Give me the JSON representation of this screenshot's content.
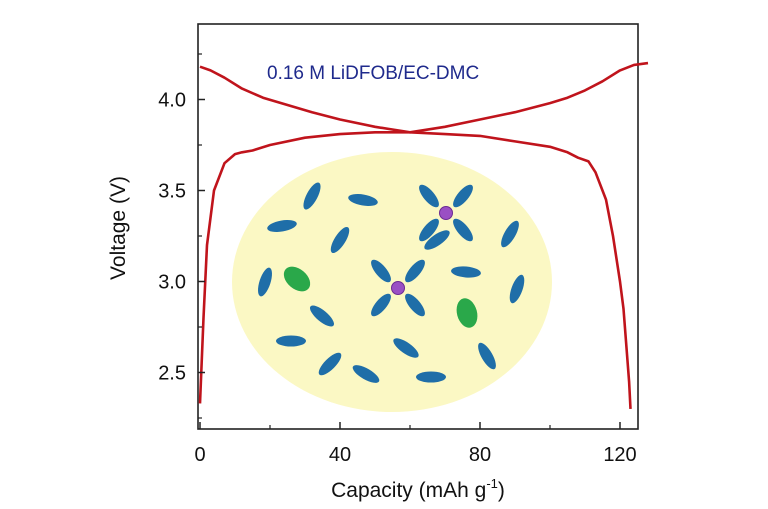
{
  "chart_data": {
    "type": "line",
    "title": "",
    "xlabel": "Capacity (mAh g",
    "xlabel_superscript": "-1",
    "xlabel_suffix": ")",
    "ylabel": "Voltage (V)",
    "xlim": [
      0,
      130
    ],
    "ylim": [
      2.2,
      4.4
    ],
    "x_ticks": [
      0,
      40,
      80,
      120
    ],
    "x_tick_labels": [
      "0",
      "40",
      "80",
      "120"
    ],
    "y_ticks": [
      2.5,
      3.0,
      3.5,
      4.0
    ],
    "y_tick_labels": [
      "2.5",
      "3.0",
      "3.5",
      "4.0"
    ],
    "grid": false,
    "annotation": "0.16 M LiDFOB/EC-DMC",
    "colors": {
      "curve": "#c0141c",
      "annotation": "#1f2a8c",
      "inset_fill": "#fbf8c4",
      "solvent": "#1f6ea8",
      "anion": "#2aa84a",
      "ion": "#9a4fc4"
    },
    "series": [
      {
        "role": "charge",
        "x": [
          0,
          1,
          2,
          4,
          7,
          10,
          12,
          15,
          20,
          30,
          40,
          50,
          60,
          70,
          80,
          90,
          100,
          105,
          108,
          111,
          113,
          116,
          118,
          120,
          121,
          122,
          122.6,
          123
        ],
        "y": [
          2.33,
          2.8,
          3.2,
          3.5,
          3.65,
          3.7,
          3.71,
          3.72,
          3.75,
          3.79,
          3.81,
          3.82,
          3.82,
          3.81,
          3.8,
          3.77,
          3.74,
          3.71,
          3.68,
          3.66,
          3.6,
          3.45,
          3.25,
          3.0,
          2.85,
          2.6,
          2.45,
          2.3
        ]
      },
      {
        "role": "discharge",
        "x": [
          0,
          3,
          7,
          12,
          18,
          25,
          32,
          40,
          50,
          60,
          70,
          80,
          90,
          100,
          105,
          110,
          115,
          120,
          124,
          128
        ],
        "y": [
          4.18,
          4.16,
          4.12,
          4.06,
          4.01,
          3.97,
          3.93,
          3.89,
          3.85,
          3.82,
          3.85,
          3.89,
          3.93,
          3.98,
          4.01,
          4.05,
          4.1,
          4.16,
          4.19,
          4.2
        ]
      }
    ]
  }
}
